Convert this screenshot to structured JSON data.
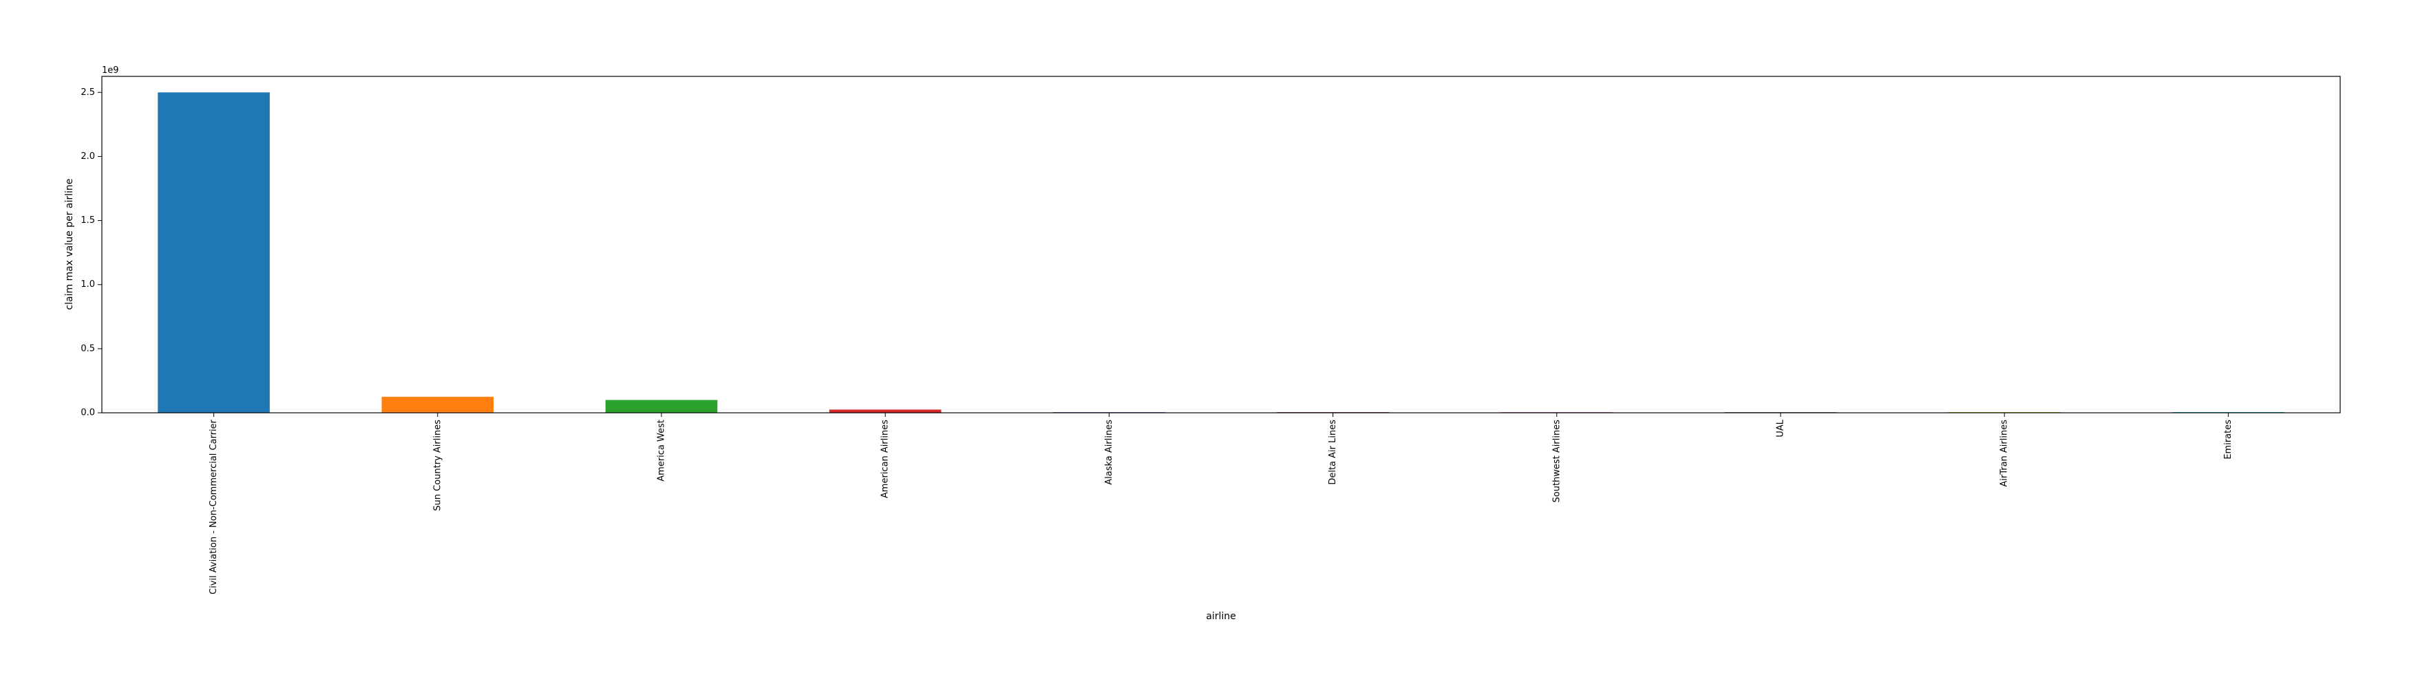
{
  "chart_data": {
    "type": "bar",
    "title": "",
    "xlabel": "airline",
    "ylabel": "claim max value per airline",
    "y_offset_label": "1e9",
    "y_scale_factor": 1000000000,
    "ylim": [
      0,
      2625000000.0
    ],
    "yticks": [
      0,
      500000000.0,
      1000000000.0,
      1500000000.0,
      2000000000.0,
      2500000000.0
    ],
    "ytick_labels": [
      "0.0",
      "0.5",
      "1.0",
      "1.5",
      "2.0",
      "2.5"
    ],
    "grid": false,
    "legend": "none",
    "categories": [
      "Civil Aviation - Non-Commercial Carrier",
      "Sun Country Airlines",
      "America West",
      "American Airlines",
      "Alaska Airlines",
      "Delta Air Lines",
      "Southwest Airlines",
      "UAL",
      "AirTran Airlines",
      "Emirates"
    ],
    "values": [
      2500000000,
      125000000,
      100000000,
      25000000,
      3000000,
      3000000,
      2000000,
      2000000,
      1500000,
      1500000
    ],
    "colors": [
      "#1f77b4",
      "#ff7f0e",
      "#2ca02c",
      "#d62728",
      "#9467bd",
      "#8c564b",
      "#e377c2",
      "#7f7f7f",
      "#bcbd22",
      "#17becf"
    ]
  }
}
